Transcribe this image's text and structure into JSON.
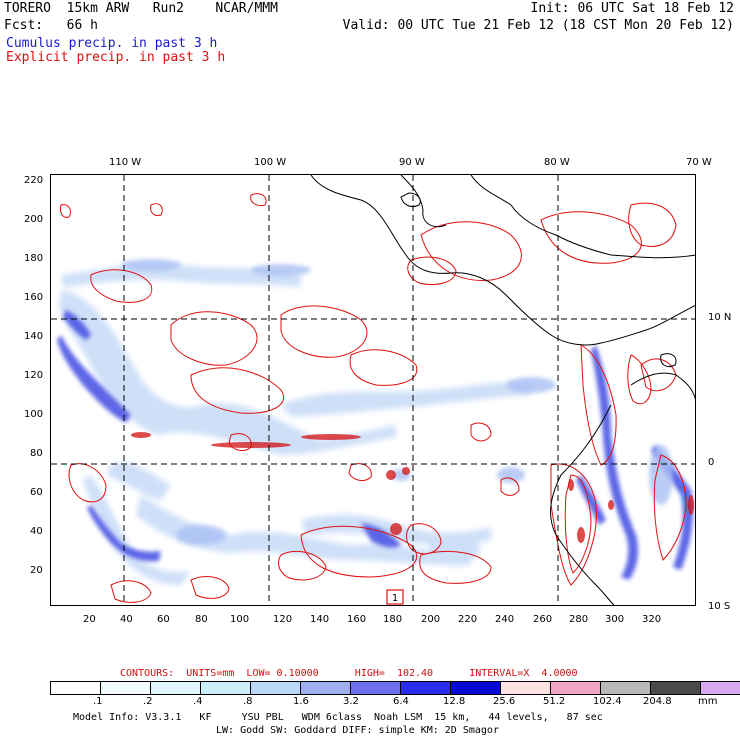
{
  "header": {
    "model_line": "TORERO  15km ARW   Run2    NCAR/MMM",
    "init_line": "Init: 06 UTC Sat 18 Feb 12",
    "fcst_line": "Fcst:   66 h",
    "valid_line": "Valid: 00 UTC Tue 21 Feb 12 (18 CST Mon 20 Feb 12)",
    "legend_cumulus": "Cumulus precip. in past 3 h",
    "legend_explicit": "Explicit precip. in past 3 h",
    "legend_cumulus_color": "#1a1ad0",
    "legend_explicit_color": "#e01010"
  },
  "map": {
    "lon_labels": [
      "110 W",
      "100 W",
      "90 W",
      "80 W",
      "70 W"
    ],
    "lat_labels": [
      "10 N",
      "0",
      "10 S"
    ],
    "y_ticks": [
      "220",
      "200",
      "180",
      "160",
      "140",
      "120",
      "100",
      "80",
      "60",
      "40",
      "20"
    ],
    "x_ticks": [
      "20",
      "40",
      "60",
      "80",
      "100",
      "120",
      "140",
      "160",
      "180",
      "200",
      "220",
      "240",
      "260",
      "280",
      "300",
      "320"
    ],
    "marker_label": "1"
  },
  "contour_info": {
    "text": "CONTOURS:  UNITS=mm  LOW= 0.10000      HIGH=  102.40      INTERVAL=X  4.0000",
    "color": "#cc1010"
  },
  "colorbar": {
    "colors": [
      "#ffffff",
      "#f2fbff",
      "#e2f5fc",
      "#cceefa",
      "#bcd8f8",
      "#a0aef2",
      "#6d72ec",
      "#2b2cf0",
      "#0a0ad6",
      "#fde2e2",
      "#f4a6c8",
      "#b8b8b8",
      "#4a4a4a",
      "#d6a8f0"
    ],
    "labels": [
      ".1",
      ".2",
      ".4",
      ".8",
      "1.6",
      "3.2",
      "6.4",
      "12.8",
      "25.6",
      "51.2",
      "102.4",
      "204.8"
    ],
    "units": "mm"
  },
  "footer": {
    "line1": "Model Info: V3.3.1   KF     YSU PBL   WDM 6class  Noah LSM  15 km,   44 levels,   87 sec",
    "line2": "LW: Godd SW: Goddard DIFF: simple KM: 2D Smagor"
  }
}
